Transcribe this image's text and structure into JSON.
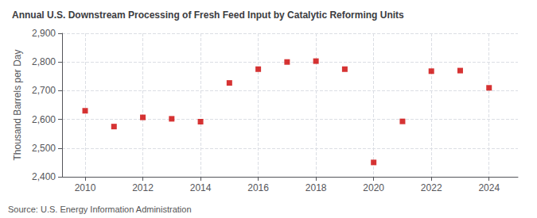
{
  "chart_data": {
    "type": "scatter",
    "title": "Annual U.S. Downstream Processing of Fresh Feed Input by Catalytic Reforming Units",
    "ylabel": "Thousand Barrels per Day",
    "annotations": [
      "Source: U.S. Energy Information Administration"
    ],
    "x": [
      2010,
      2011,
      2012,
      2013,
      2014,
      2015,
      2016,
      2017,
      2018,
      2019,
      2020,
      2021,
      2022,
      2023,
      2024
    ],
    "values": [
      2630,
      2575,
      2607,
      2602,
      2592,
      2727,
      2775,
      2800,
      2803,
      2775,
      2450,
      2593,
      2768,
      2770,
      2710
    ],
    "color": "#cc0000",
    "marker": "square",
    "xlim": [
      2009.2,
      2025.0
    ],
    "xticks": [
      2010,
      2012,
      2014,
      2016,
      2018,
      2020,
      2022,
      2024
    ],
    "ylim": [
      2400,
      2900
    ],
    "yticks": [
      {
        "value": 2400,
        "label": "2,400"
      },
      {
        "value": 2500,
        "label": "2,500"
      },
      {
        "value": 2600,
        "label": "2,600"
      },
      {
        "value": 2700,
        "label": "2,700"
      },
      {
        "value": 2800,
        "label": "2,800"
      },
      {
        "value": 2900,
        "label": "2,900"
      }
    ],
    "grid": true
  }
}
